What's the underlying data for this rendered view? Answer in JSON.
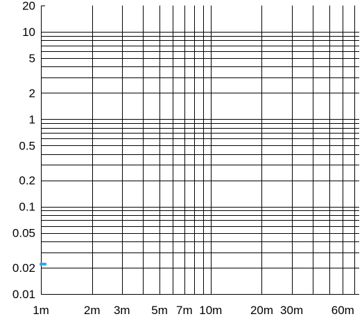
{
  "chart_data": {
    "type": "line",
    "title": "",
    "xlabel": "",
    "ylabel": "",
    "x_scale": "log",
    "y_scale": "log",
    "xlim": [
      0.001,
      0.075
    ],
    "ylim": [
      0.01,
      20
    ],
    "grid": true,
    "x_ticks": [
      {
        "value": 0.001,
        "label": "1m"
      },
      {
        "value": 0.002,
        "label": "2m"
      },
      {
        "value": 0.003,
        "label": "3m"
      },
      {
        "value": 0.005,
        "label": "5m"
      },
      {
        "value": 0.007,
        "label": "7m"
      },
      {
        "value": 0.01,
        "label": "10m"
      },
      {
        "value": 0.02,
        "label": "20m"
      },
      {
        "value": 0.03,
        "label": "30m"
      },
      {
        "value": 0.06,
        "label": "60m"
      }
    ],
    "y_ticks": [
      {
        "value": 0.01,
        "label": "0.01"
      },
      {
        "value": 0.02,
        "label": "0.02"
      },
      {
        "value": 0.05,
        "label": "0.05"
      },
      {
        "value": 0.1,
        "label": "0.1"
      },
      {
        "value": 0.2,
        "label": "0.2"
      },
      {
        "value": 0.5,
        "label": "0.5"
      },
      {
        "value": 1,
        "label": "1"
      },
      {
        "value": 2,
        "label": "2"
      },
      {
        "value": 5,
        "label": "5"
      },
      {
        "value": 10,
        "label": "10"
      },
      {
        "value": 20,
        "label": "20"
      }
    ],
    "x_grid": [
      0.001,
      0.002,
      0.003,
      0.004,
      0.005,
      0.006,
      0.007,
      0.008,
      0.009,
      0.01,
      0.02,
      0.03,
      0.04,
      0.05,
      0.06,
      0.07
    ],
    "y_grid": [
      0.02,
      0.03,
      0.04,
      0.05,
      0.06,
      0.07,
      0.08,
      0.09,
      0.1,
      0.2,
      0.3,
      0.4,
      0.5,
      0.6,
      0.7,
      0.8,
      0.9,
      1,
      2,
      3,
      4,
      5,
      6,
      7,
      8,
      9,
      10
    ],
    "series": [
      {
        "color": "#29a8e0",
        "x": [
          0.001,
          0.00106
        ],
        "y": [
          0.022,
          0.022
        ]
      }
    ],
    "colors": {
      "grid": "#000000",
      "axis": "#000000",
      "text": "#000000",
      "background": "#ffffff"
    }
  }
}
